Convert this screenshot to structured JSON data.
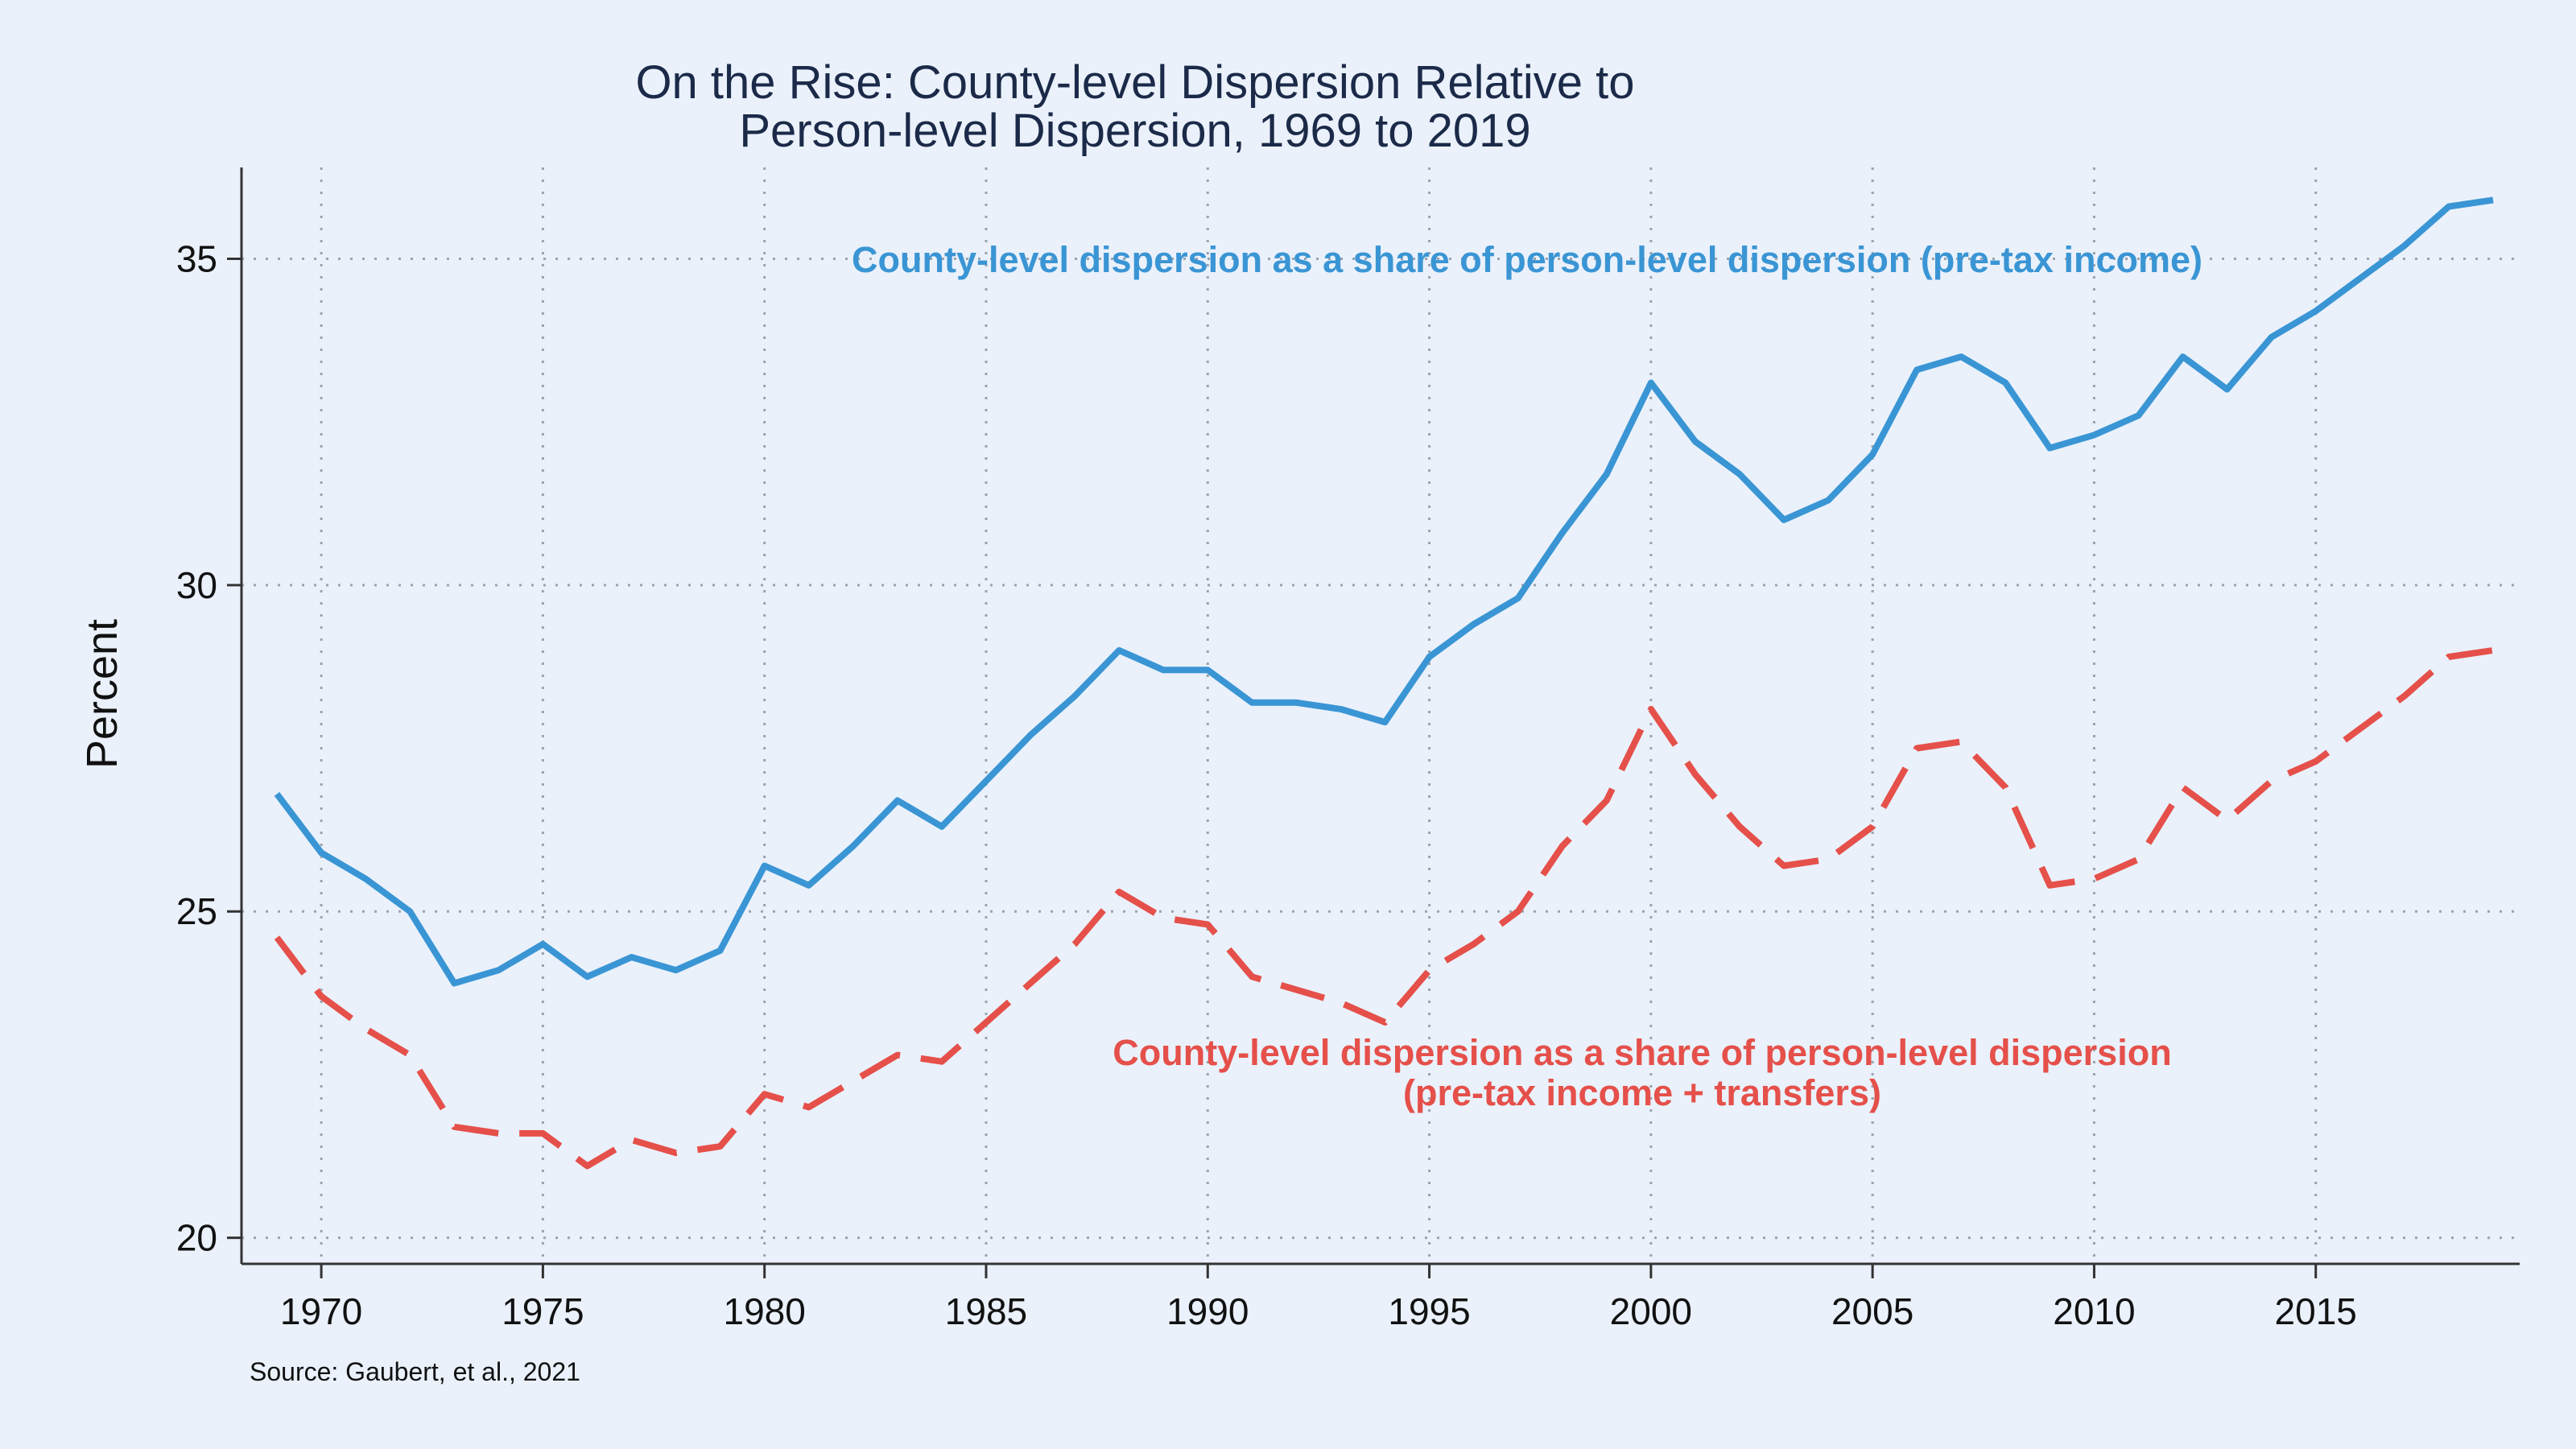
{
  "colors": {
    "background": "#eaf1fb",
    "pretax": "#3a95d4",
    "transfers": "#e5504a",
    "title": "#1b2a48"
  },
  "chart_data": {
    "type": "line",
    "title_lines": [
      "On the Rise: County-level Dispersion Relative to",
      "Person-level Dispersion, 1969 to 2019"
    ],
    "xlabel": "",
    "ylabel": "Percent",
    "xlim": [
      1968.2,
      2019.6
    ],
    "ylim": [
      19.6,
      36.4
    ],
    "x_ticks": [
      1970,
      1975,
      1980,
      1985,
      1990,
      1995,
      2000,
      2005,
      2010,
      2015
    ],
    "y_ticks": [
      20,
      25,
      30,
      35
    ],
    "grid": true,
    "x": [
      1969,
      1970,
      1971,
      1972,
      1973,
      1974,
      1975,
      1976,
      1977,
      1978,
      1979,
      1980,
      1981,
      1982,
      1983,
      1984,
      1985,
      1986,
      1987,
      1988,
      1989,
      1990,
      1991,
      1992,
      1993,
      1994,
      1995,
      1996,
      1997,
      1998,
      1999,
      2000,
      2001,
      2002,
      2003,
      2004,
      2005,
      2006,
      2007,
      2008,
      2009,
      2010,
      2011,
      2012,
      2013,
      2014,
      2015,
      2016,
      2017,
      2018,
      2019
    ],
    "series": [
      {
        "name": "County-level dispersion as a share of person-level dispersion (pre-tax income)",
        "style": "solid",
        "values": [
          26.8,
          25.9,
          25.5,
          25.0,
          23.9,
          24.1,
          24.5,
          24.0,
          24.3,
          24.1,
          24.4,
          25.7,
          25.4,
          26.0,
          26.7,
          26.3,
          27.0,
          27.7,
          28.3,
          29.0,
          28.7,
          28.7,
          28.2,
          28.2,
          28.1,
          27.9,
          28.9,
          29.4,
          29.8,
          30.8,
          31.7,
          33.1,
          32.2,
          31.7,
          31.0,
          31.3,
          32.0,
          33.3,
          33.5,
          33.1,
          32.1,
          32.3,
          32.6,
          33.5,
          33.0,
          33.8,
          34.2,
          34.7,
          35.2,
          35.8,
          35.9
        ]
      },
      {
        "name": "County-level dispersion as a share of person-level dispersion (pre-tax income + transfers)",
        "style": "dashed",
        "values": [
          24.6,
          23.7,
          23.2,
          22.8,
          21.7,
          21.6,
          21.6,
          21.1,
          21.5,
          21.3,
          21.4,
          22.2,
          22.0,
          22.4,
          22.8,
          22.7,
          23.3,
          23.9,
          24.5,
          25.3,
          24.9,
          24.8,
          24.0,
          23.8,
          23.6,
          23.3,
          24.1,
          24.5,
          25.0,
          26.0,
          26.7,
          28.1,
          27.1,
          26.3,
          25.7,
          25.8,
          26.3,
          27.5,
          27.6,
          26.9,
          25.4,
          25.5,
          25.8,
          26.9,
          26.4,
          27.0,
          27.3,
          27.8,
          28.3,
          28.9,
          29.0
        ]
      }
    ],
    "annotations": [
      {
        "series": 0,
        "lines": [
          "County-level dispersion as a share of person-level dispersion (pre-tax income)"
        ]
      },
      {
        "series": 1,
        "lines": [
          "County-level dispersion as a share of person-level dispersion",
          "(pre-tax income + transfers)"
        ]
      }
    ],
    "source": "Source: Gaubert, et al., 2021"
  }
}
